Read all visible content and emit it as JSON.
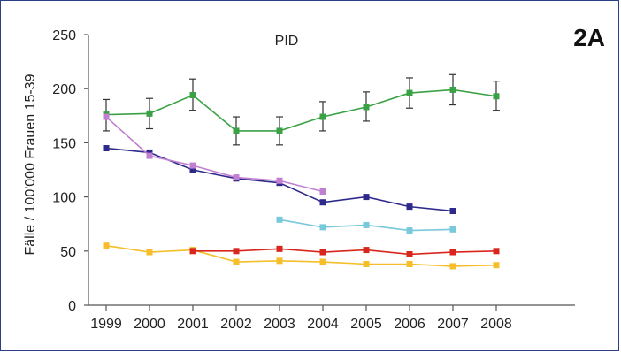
{
  "chart_data": {
    "type": "line",
    "title": "PID",
    "panel_label": "2A",
    "xlabel": "",
    "ylabel": "Fälle / 100'000 Frauen 15-39",
    "x": [
      1999,
      2000,
      2001,
      2002,
      2003,
      2004,
      2005,
      2006,
      2007,
      2008
    ],
    "x_tick_labels": [
      "1999",
      "2000",
      "2001",
      "2002",
      "2003",
      "2004",
      "2005",
      "2006",
      "2007",
      "2008"
    ],
    "ylim": [
      0,
      250
    ],
    "y_ticks": [
      0,
      50,
      100,
      150,
      200,
      250
    ],
    "y_tick_labels": [
      "0",
      "50",
      "100",
      "150",
      "200",
      "250"
    ],
    "grid": false,
    "series": [
      {
        "color": "#3aa144",
        "x": [
          1999,
          2000,
          2001,
          2002,
          2003,
          2004,
          2005,
          2006,
          2007,
          2008
        ],
        "values": [
          176,
          177,
          194,
          161,
          161,
          174,
          183,
          196,
          199,
          193
        ],
        "error_low": [
          161,
          163,
          180,
          148,
          148,
          161,
          170,
          182,
          185,
          180
        ],
        "error_high": [
          190,
          191,
          209,
          174,
          174,
          188,
          197,
          210,
          213,
          207
        ]
      },
      {
        "color": "#2e2a8c",
        "x": [
          1999,
          2000,
          2001,
          2002,
          2003,
          2004,
          2005,
          2006,
          2007
        ],
        "values": [
          145,
          141,
          125,
          117,
          113,
          95,
          100,
          91,
          87
        ]
      },
      {
        "color": "#c07fd0",
        "x": [
          1999,
          2000,
          2001,
          2002,
          2003,
          2004
        ],
        "values": [
          174,
          138,
          129,
          118,
          115,
          105
        ]
      },
      {
        "color": "#79c9dc",
        "x": [
          2003,
          2004,
          2005,
          2006,
          2007
        ],
        "values": [
          79,
          72,
          74,
          69,
          70
        ]
      },
      {
        "color": "#f5be2a",
        "x": [
          1999,
          2000,
          2001,
          2002,
          2003,
          2004,
          2005,
          2006,
          2007,
          2008
        ],
        "values": [
          55,
          49,
          51,
          40,
          41,
          40,
          38,
          38,
          36,
          37
        ]
      },
      {
        "color": "#d9261c",
        "x": [
          2001,
          2002,
          2003,
          2004,
          2005,
          2006,
          2007,
          2008
        ],
        "values": [
          50,
          50,
          52,
          49,
          51,
          47,
          49,
          50
        ]
      }
    ]
  }
}
